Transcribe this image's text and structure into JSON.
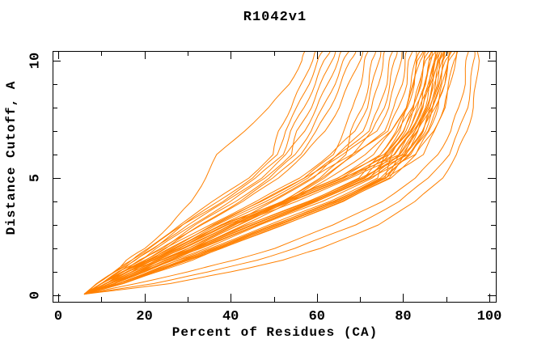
{
  "colors": {
    "curve": "#ff8000",
    "axis": "#000000",
    "background": "#ffffff"
  },
  "chart_data": {
    "type": "line",
    "title": "R1042v1",
    "xlabel": "Percent of Residues (CA)",
    "ylabel": "Distance Cutoff, A",
    "xlim": [
      -1.3,
      101.5
    ],
    "ylim": [
      -0.3,
      10.4
    ],
    "grid": false,
    "legend": "none",
    "x_axis": {
      "major_ticks": [
        0,
        20,
        40,
        60,
        80,
        100
      ],
      "major_tick_labels": [
        "0",
        "20",
        "40",
        "60",
        "80",
        "100"
      ],
      "minor_ticks": [
        10,
        30,
        50,
        70,
        90
      ]
    },
    "y_axis": {
      "major_ticks": [
        0,
        5,
        10
      ],
      "major_tick_labels": [
        "0",
        "5",
        "10"
      ],
      "minor_ticks": [
        1,
        2,
        3,
        4,
        6,
        7,
        8,
        9
      ]
    },
    "y_grid": [
      0.05,
      0.5,
      1,
      1.5,
      2,
      3,
      4,
      5,
      6,
      7,
      8,
      9,
      10,
      10.45
    ],
    "curves": [
      [
        6,
        14,
        21,
        28,
        35,
        49,
        63,
        74,
        76,
        79,
        81,
        82.2,
        83.2,
        84
      ],
      [
        6,
        12,
        18,
        24,
        31,
        44,
        58,
        70,
        74.5,
        78.5,
        81,
        82.5,
        83.5,
        84.5
      ],
      [
        6,
        10,
        15,
        21,
        27,
        38,
        52,
        65,
        73,
        77.5,
        80.5,
        82.5,
        83.8,
        85
      ],
      [
        6,
        15,
        22,
        29,
        36,
        50,
        64,
        75.5,
        77.5,
        80.5,
        82.5,
        83.7,
        84.7,
        85.5
      ],
      [
        6,
        12,
        19,
        25,
        32,
        45,
        59,
        71,
        76,
        80,
        82.5,
        84,
        85,
        86
      ],
      [
        6,
        11,
        16,
        22,
        28,
        39,
        53,
        66,
        74.5,
        79,
        82,
        84,
        85.3,
        86.5
      ],
      [
        6,
        14,
        22,
        29,
        37,
        51,
        65,
        76,
        79,
        82,
        84,
        85.2,
        86.2,
        87
      ],
      [
        6,
        13,
        19,
        26,
        33,
        46,
        60,
        72,
        77,
        81,
        83.5,
        85,
        86,
        87
      ],
      [
        6,
        10,
        15,
        21,
        27,
        38,
        52,
        65,
        75.5,
        80,
        83,
        85,
        86.3,
        87.5
      ],
      [
        6,
        15,
        23,
        30,
        38,
        52,
        66,
        77,
        80,
        83,
        85,
        86.2,
        87.2,
        88
      ],
      [
        6,
        12,
        18,
        25,
        32,
        45,
        59,
        71,
        78,
        82,
        84.5,
        86,
        87,
        88
      ],
      [
        6,
        11,
        17,
        23,
        29,
        40,
        54,
        67,
        76.5,
        81,
        84,
        86,
        87.3,
        88.5
      ],
      [
        6,
        14,
        21,
        28,
        36,
        50,
        64,
        75,
        80.5,
        83.5,
        85.5,
        86.7,
        87.7,
        88.5
      ],
      [
        6,
        13,
        20,
        26,
        33,
        46,
        60,
        72,
        79,
        83,
        85.5,
        87,
        88,
        89
      ],
      [
        6,
        10,
        16,
        22,
        28,
        39,
        53,
        66,
        77,
        81.5,
        84.5,
        86.5,
        87.8,
        89
      ],
      [
        6,
        15,
        22,
        30,
        37,
        51,
        65,
        76,
        81.5,
        84.5,
        86.5,
        87.7,
        88.7,
        89.5
      ],
      [
        6,
        12,
        19,
        25,
        32,
        45,
        59,
        71,
        79.5,
        83.5,
        86,
        87.5,
        88.5,
        89.5
      ],
      [
        6,
        11,
        16,
        23,
        29,
        40,
        54,
        67,
        78,
        82.5,
        85.5,
        87.5,
        88.8,
        90
      ],
      [
        6,
        14,
        21,
        29,
        36,
        50,
        64,
        75,
        82,
        85,
        87,
        88.2,
        89.2,
        90
      ],
      [
        6,
        13,
        20,
        27,
        34,
        47,
        61,
        73,
        80.5,
        84.5,
        87,
        88.5,
        89.5,
        90.5
      ],
      [
        6,
        10,
        15,
        22,
        28,
        39,
        53,
        66,
        79,
        83.5,
        86.5,
        88.5,
        89.8,
        91
      ],
      [
        6,
        15,
        23,
        31,
        38,
        52,
        66,
        77,
        83,
        86,
        88,
        89.2,
        90.2,
        91
      ],
      [
        6,
        12,
        18,
        24,
        31,
        44,
        58,
        70,
        81.5,
        85.5,
        88,
        89.5,
        90.5,
        91.5
      ],
      [
        6,
        11,
        17,
        24,
        30,
        41,
        55,
        68,
        80,
        84.5,
        87.5,
        89.5,
        90.8,
        92
      ],
      [
        6,
        14,
        22,
        30,
        37,
        51,
        65,
        76,
        84.5,
        87.5,
        89.5,
        90.7,
        91.7,
        92.5
      ],
      [
        6,
        13,
        19,
        26,
        33,
        46,
        60,
        72,
        83,
        87,
        89.5,
        91,
        92,
        93
      ],
      [
        6,
        11,
        16,
        21,
        26,
        36,
        47,
        57,
        64,
        66,
        68.5,
        70,
        71.2,
        72
      ],
      [
        6,
        13,
        19,
        25,
        31,
        42,
        52,
        61,
        66.5,
        68,
        70.5,
        72,
        72.9,
        73.5
      ],
      [
        6,
        10,
        15,
        20,
        25,
        35,
        46,
        56,
        63,
        69,
        71.5,
        73,
        74.2,
        75
      ],
      [
        6,
        12,
        17,
        23,
        29,
        40,
        50,
        59,
        65,
        70.5,
        72.8,
        74.3,
        75.3,
        76
      ],
      [
        6,
        11,
        16,
        22,
        27,
        37,
        48,
        58,
        65,
        72,
        74.5,
        76,
        77,
        77.5
      ],
      [
        6,
        13,
        19,
        25,
        31,
        42,
        53,
        62,
        68,
        73,
        75.5,
        77,
        78,
        78.5
      ],
      [
        6,
        10,
        15,
        21,
        26,
        36,
        47,
        57,
        66,
        74,
        76.5,
        78.2,
        79.3,
        80
      ],
      [
        6,
        12,
        18,
        24,
        30,
        41,
        52,
        61,
        69,
        75.5,
        78,
        79.7,
        80.5,
        81
      ],
      [
        6,
        11,
        17,
        22,
        28,
        38,
        49,
        59,
        68,
        76.5,
        79,
        80.7,
        81.5,
        82
      ],
      [
        6,
        13,
        20,
        26,
        32,
        43,
        54,
        63,
        71,
        77.5,
        80.5,
        82,
        82.7,
        83
      ],
      [
        6,
        9,
        13,
        17,
        21,
        28,
        36,
        44,
        50,
        51,
        54,
        56.5,
        58.8,
        60
      ],
      [
        6,
        10,
        14,
        18,
        22,
        29,
        37,
        45,
        51,
        52.5,
        55.5,
        58,
        60.3,
        61.5
      ],
      [
        6,
        9,
        13,
        17,
        21,
        29,
        38,
        46,
        52,
        54,
        57,
        59.5,
        61.8,
        63
      ],
      [
        6,
        10,
        14,
        19,
        23,
        31,
        40,
        48,
        54,
        55.5,
        58.5,
        61,
        63.3,
        64.5
      ],
      [
        6,
        9,
        13,
        18,
        22,
        30,
        39,
        47,
        53,
        57,
        60,
        62.5,
        64.8,
        66
      ],
      [
        6,
        10,
        15,
        19,
        24,
        32,
        41,
        49,
        55,
        58.5,
        61.5,
        64,
        66.3,
        67.5
      ],
      [
        6,
        11,
        15,
        20,
        25,
        33,
        42,
        50,
        56,
        60,
        63,
        65.5,
        67.8,
        69
      ],
      [
        6,
        10,
        14,
        19,
        24,
        33,
        43,
        51,
        57,
        62,
        65,
        67.5,
        69.8,
        71
      ],
      [
        6,
        9,
        13,
        16,
        20,
        26,
        31,
        34,
        37,
        43,
        49,
        53.5,
        56.5,
        57.5
      ],
      [
        6,
        18,
        30,
        41,
        50,
        64,
        75,
        83,
        88,
        91,
        93,
        94.2,
        94.8,
        95
      ],
      [
        6,
        22,
        35,
        46,
        55,
        69,
        79,
        86,
        90.5,
        93,
        94.8,
        95.8,
        96.3,
        96.5
      ],
      [
        6,
        26,
        40,
        52,
        61,
        74,
        83,
        89,
        92.5,
        94.8,
        96.2,
        97,
        97.4,
        97.5
      ]
    ]
  }
}
